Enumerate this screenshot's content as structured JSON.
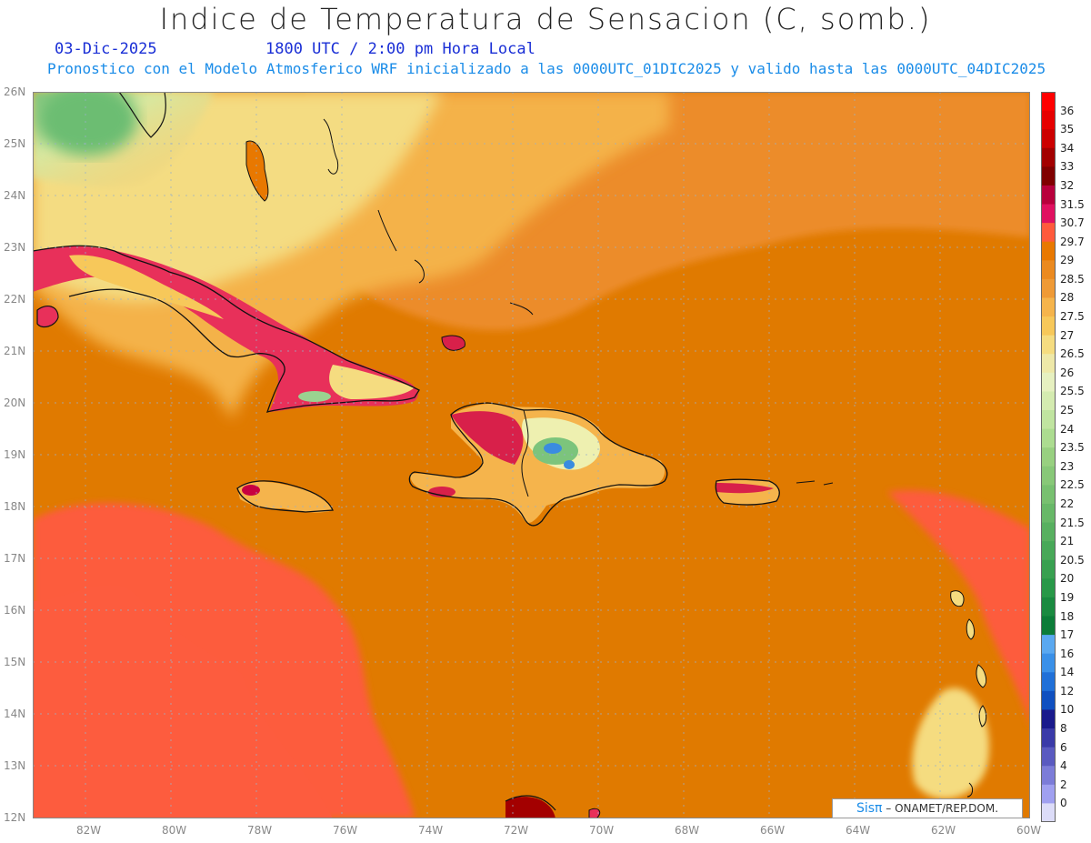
{
  "header": {
    "title": "Indice de Temperatura de Sensacion (C, somb.)",
    "date": "03-Dic-2025",
    "time": "1800 UTC / 2:00 pm Hora Local",
    "subtitle": "Pronostico con el Modelo Atmosferico WRF inicializado a las 0000UTC_01DIC2025 y valido hasta las  0000UTC_04DIC2025"
  },
  "axes": {
    "lat_labels": [
      "26N",
      "25N",
      "24N",
      "23N",
      "22N",
      "21N",
      "20N",
      "19N",
      "18N",
      "17N",
      "16N",
      "15N",
      "14N",
      "13N",
      "12N"
    ],
    "lon_labels": [
      "82W",
      "80W",
      "78W",
      "76W",
      "74W",
      "72W",
      "70W",
      "68W",
      "66W",
      "64W",
      "62W",
      "60W"
    ],
    "lat_range": [
      12,
      26
    ],
    "lon_range": [
      -83.2,
      -60
    ],
    "grid": true
  },
  "colorbar": {
    "levels": [
      "36",
      "35",
      "34",
      "33",
      "32",
      "31.5",
      "30.7",
      "29.7",
      "29",
      "28.5",
      "28",
      "27.5",
      "27",
      "26.5",
      "26",
      "25.5",
      "25",
      "24",
      "23.5",
      "23",
      "22.5",
      "22",
      "21.5",
      "21",
      "20.5",
      "20",
      "19",
      "18",
      "17",
      "16",
      "14",
      "12",
      "10",
      "8",
      "6",
      "4",
      "2",
      "0"
    ],
    "colors": [
      "#ff0000",
      "#e60000",
      "#cc0000",
      "#a30000",
      "#800000",
      "#b8003c",
      "#e01060",
      "#ff5a3c",
      "#e87800",
      "#eb8a20",
      "#ef9a36",
      "#f5b44c",
      "#f7c85a",
      "#f5dc80",
      "#eee8a8",
      "#e6f0c0",
      "#d4ebb0",
      "#c0e4a0",
      "#acdc90",
      "#98d080",
      "#88c878",
      "#78c070",
      "#68b868",
      "#58b060",
      "#48a858",
      "#38a050",
      "#289848",
      "#1a8a40",
      "#0c7c38",
      "#5aa8f0",
      "#3a90e8",
      "#2070d8",
      "#1050c0",
      "#1a1a8c",
      "#3a3aa8",
      "#5a5ac0",
      "#7c7cd8",
      "#a0a0f0",
      "#dcdcf8"
    ]
  },
  "credit": {
    "brand": "Sisπ",
    "text": "– ONAMET/REP.DOM."
  }
}
